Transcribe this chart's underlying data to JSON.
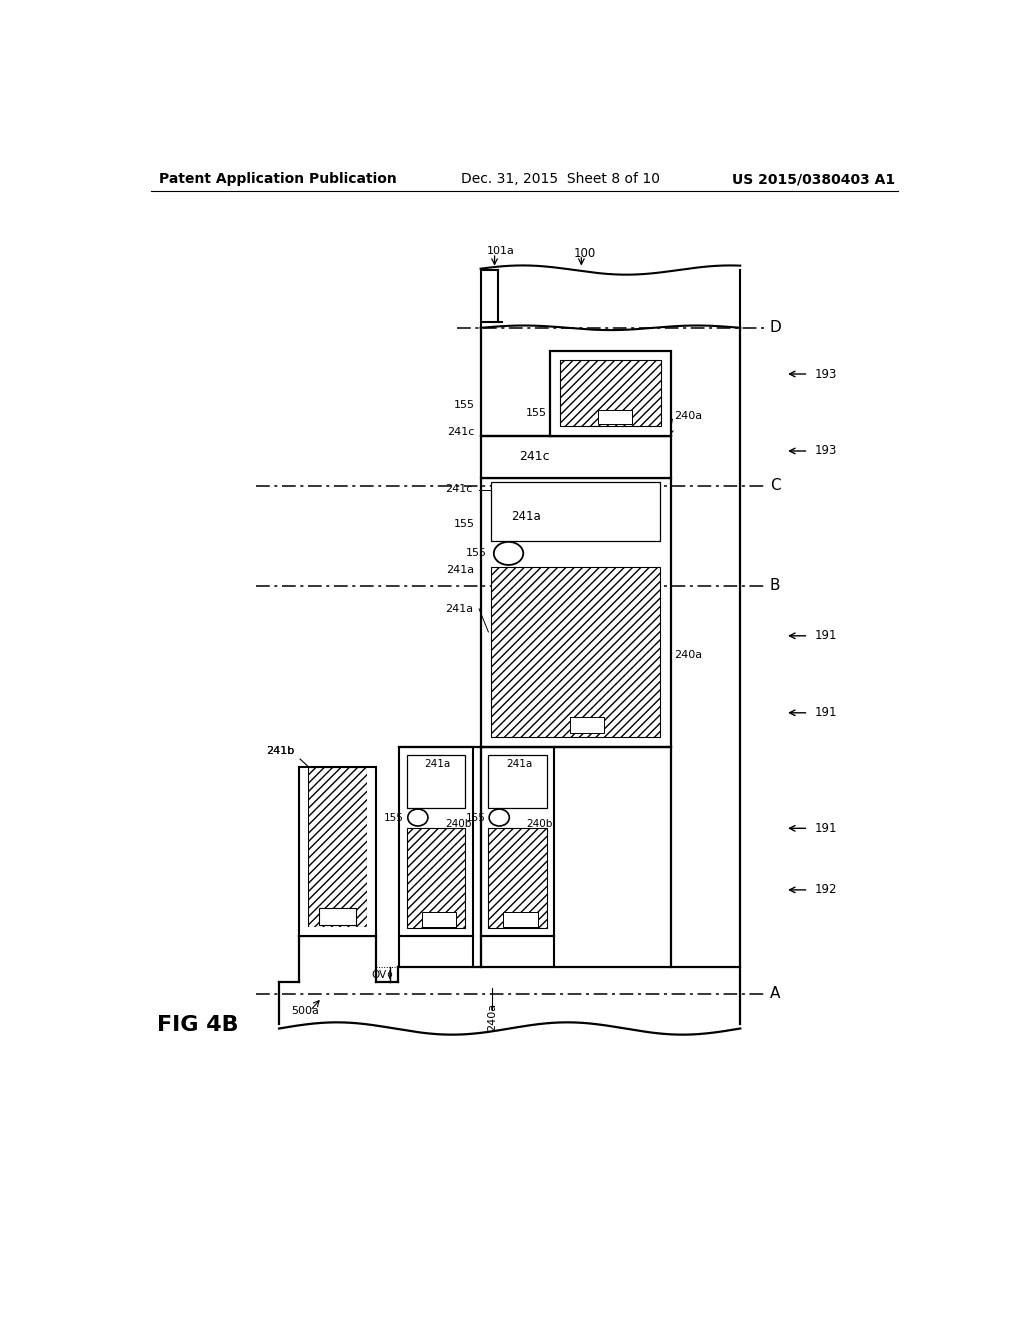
{
  "header_left": "Patent Application Publication",
  "header_mid": "Dec. 31, 2015  Sheet 8 of 10",
  "header_right": "US 2015/0380403 A1",
  "fig_label": "FIG 4B",
  "background_color": "#ffffff"
}
